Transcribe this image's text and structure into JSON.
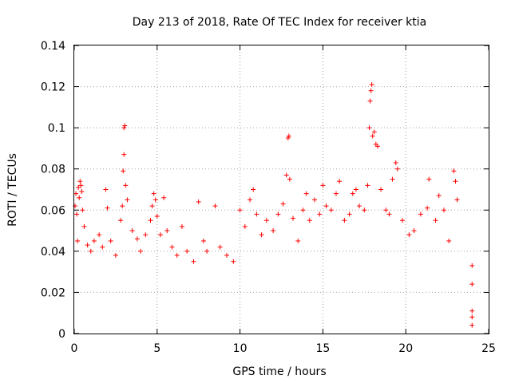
{
  "chart_data": {
    "type": "scatter",
    "title": "Day 213 of 2018, Rate Of TEC Index for receiver ktia",
    "xlabel": "GPS time / hours",
    "ylabel": "ROTI / TECUs",
    "xlim": [
      0,
      25
    ],
    "ylim": [
      0,
      0.14
    ],
    "xticks": [
      0,
      5,
      10,
      15,
      20,
      25
    ],
    "xtick_labels": [
      "0",
      "5",
      "10",
      "15",
      "20",
      "25"
    ],
    "yticks": [
      0,
      0.02,
      0.04,
      0.06,
      0.08,
      0.1,
      0.12,
      0.14
    ],
    "ytick_labels": [
      "0",
      "0.02",
      "0.04",
      "0.06",
      "0.08",
      "0.1",
      "0.12",
      "0.14"
    ],
    "grid": true,
    "marker": "+",
    "marker_color": "#ff0000",
    "series": [
      {
        "name": "ROTI",
        "points": [
          [
            0.05,
            0.062
          ],
          [
            0.1,
            0.068
          ],
          [
            0.15,
            0.058
          ],
          [
            0.2,
            0.045
          ],
          [
            0.25,
            0.071
          ],
          [
            0.3,
            0.066
          ],
          [
            0.35,
            0.074
          ],
          [
            0.4,
            0.072
          ],
          [
            0.45,
            0.069
          ],
          [
            0.5,
            0.06
          ],
          [
            0.6,
            0.052
          ],
          [
            0.8,
            0.043
          ],
          [
            1.0,
            0.04
          ],
          [
            1.2,
            0.045
          ],
          [
            1.5,
            0.048
          ],
          [
            1.7,
            0.042
          ],
          [
            1.9,
            0.07
          ],
          [
            2.0,
            0.061
          ],
          [
            2.2,
            0.045
          ],
          [
            2.5,
            0.038
          ],
          [
            2.8,
            0.055
          ],
          [
            2.9,
            0.062
          ],
          [
            2.95,
            0.079
          ],
          [
            3.0,
            0.087
          ],
          [
            3.0,
            0.1
          ],
          [
            3.05,
            0.101
          ],
          [
            3.1,
            0.072
          ],
          [
            3.2,
            0.065
          ],
          [
            3.5,
            0.05
          ],
          [
            3.8,
            0.046
          ],
          [
            4.0,
            0.04
          ],
          [
            4.3,
            0.048
          ],
          [
            4.6,
            0.055
          ],
          [
            4.7,
            0.062
          ],
          [
            4.8,
            0.068
          ],
          [
            4.9,
            0.065
          ],
          [
            5.0,
            0.057
          ],
          [
            5.2,
            0.048
          ],
          [
            5.4,
            0.066
          ],
          [
            5.6,
            0.05
          ],
          [
            5.9,
            0.042
          ],
          [
            6.2,
            0.038
          ],
          [
            6.5,
            0.052
          ],
          [
            6.8,
            0.04
          ],
          [
            7.2,
            0.035
          ],
          [
            7.5,
            0.064
          ],
          [
            7.8,
            0.045
          ],
          [
            8.0,
            0.04
          ],
          [
            8.5,
            0.062
          ],
          [
            8.8,
            0.042
          ],
          [
            9.2,
            0.038
          ],
          [
            9.6,
            0.035
          ],
          [
            10.0,
            0.06
          ],
          [
            10.3,
            0.052
          ],
          [
            10.6,
            0.065
          ],
          [
            10.8,
            0.07
          ],
          [
            11.0,
            0.058
          ],
          [
            11.3,
            0.048
          ],
          [
            11.6,
            0.055
          ],
          [
            12.0,
            0.05
          ],
          [
            12.3,
            0.058
          ],
          [
            12.6,
            0.063
          ],
          [
            12.8,
            0.077
          ],
          [
            12.9,
            0.095
          ],
          [
            12.95,
            0.096
          ],
          [
            13.0,
            0.075
          ],
          [
            13.2,
            0.056
          ],
          [
            13.5,
            0.045
          ],
          [
            13.8,
            0.06
          ],
          [
            14.0,
            0.068
          ],
          [
            14.2,
            0.055
          ],
          [
            14.5,
            0.065
          ],
          [
            14.8,
            0.058
          ],
          [
            15.0,
            0.072
          ],
          [
            15.2,
            0.062
          ],
          [
            15.5,
            0.06
          ],
          [
            15.8,
            0.068
          ],
          [
            16.0,
            0.074
          ],
          [
            16.3,
            0.055
          ],
          [
            16.6,
            0.058
          ],
          [
            16.8,
            0.068
          ],
          [
            17.0,
            0.07
          ],
          [
            17.2,
            0.062
          ],
          [
            17.5,
            0.06
          ],
          [
            17.7,
            0.072
          ],
          [
            17.8,
            0.1
          ],
          [
            17.85,
            0.113
          ],
          [
            17.9,
            0.118
          ],
          [
            17.95,
            0.121
          ],
          [
            18.0,
            0.096
          ],
          [
            18.1,
            0.098
          ],
          [
            18.2,
            0.092
          ],
          [
            18.3,
            0.091
          ],
          [
            18.5,
            0.07
          ],
          [
            18.8,
            0.06
          ],
          [
            19.0,
            0.058
          ],
          [
            19.2,
            0.075
          ],
          [
            19.4,
            0.083
          ],
          [
            19.5,
            0.08
          ],
          [
            19.8,
            0.055
          ],
          [
            20.2,
            0.048
          ],
          [
            20.5,
            0.05
          ],
          [
            20.9,
            0.058
          ],
          [
            21.3,
            0.061
          ],
          [
            21.4,
            0.075
          ],
          [
            21.8,
            0.055
          ],
          [
            22.0,
            0.067
          ],
          [
            22.3,
            0.06
          ],
          [
            22.6,
            0.045
          ],
          [
            22.9,
            0.079
          ],
          [
            23.0,
            0.074
          ],
          [
            23.1,
            0.065
          ],
          [
            24.0,
            0.033
          ],
          [
            24.0,
            0.024
          ],
          [
            24.0,
            0.011
          ],
          [
            24.0,
            0.008
          ],
          [
            24.0,
            0.004
          ]
        ]
      }
    ]
  }
}
